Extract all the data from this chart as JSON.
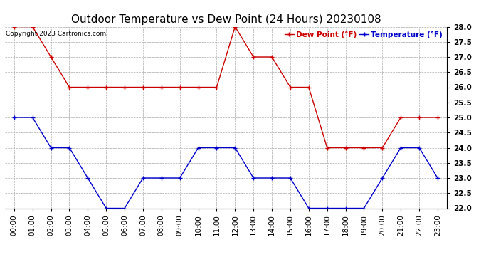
{
  "title": "Outdoor Temperature vs Dew Point (24 Hours) 20230108",
  "copyright": "Copyright 2023 Cartronics.com",
  "legend_dew": "Dew Point (°F)",
  "legend_temp": "Temperature (°F)",
  "hours": [
    "00:00",
    "01:00",
    "02:00",
    "03:00",
    "04:00",
    "05:00",
    "06:00",
    "07:00",
    "08:00",
    "09:00",
    "10:00",
    "11:00",
    "12:00",
    "13:00",
    "14:00",
    "15:00",
    "16:00",
    "17:00",
    "18:00",
    "19:00",
    "20:00",
    "21:00",
    "22:00",
    "23:00"
  ],
  "temperature": [
    25.0,
    25.0,
    24.0,
    24.0,
    23.0,
    22.0,
    22.0,
    23.0,
    23.0,
    23.0,
    24.0,
    24.0,
    24.0,
    23.0,
    23.0,
    23.0,
    22.0,
    22.0,
    22.0,
    22.0,
    23.0,
    24.0,
    24.0,
    23.0
  ],
  "dew_point": [
    28.0,
    28.0,
    27.0,
    26.0,
    26.0,
    26.0,
    26.0,
    26.0,
    26.0,
    26.0,
    26.0,
    26.0,
    28.0,
    27.0,
    27.0,
    26.0,
    26.0,
    24.0,
    24.0,
    24.0,
    24.0,
    25.0,
    25.0,
    25.0
  ],
  "ylim": [
    22.0,
    28.0
  ],
  "yticks": [
    22.0,
    22.5,
    23.0,
    23.5,
    24.0,
    24.5,
    25.0,
    25.5,
    26.0,
    26.5,
    27.0,
    27.5,
    28.0
  ],
  "temp_color": "#0000cc",
  "dew_color": "#cc0000",
  "grid_color": "#aaaaaa",
  "bg_color": "#ffffff",
  "title_fontsize": 11,
  "tick_fontsize": 7.5,
  "legend_fontsize": 7.5,
  "copyright_fontsize": 6.5
}
